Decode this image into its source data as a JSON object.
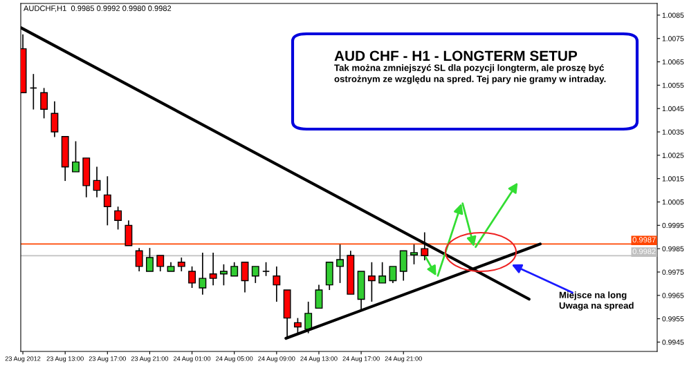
{
  "chart_data": {
    "type": "candlestick",
    "title": "AUD CHF - H1 - LONGTERM SETUP",
    "subtitle": "Tak można zmniejszyć SL dla pozycji longterm, ale proszę być\nostrożnym ze względu na spred. Tej pary nie gramy w intraday.",
    "annotations": [
      "AUDCHF,H1  0.9985 0.9992 0.9980 0.9982",
      "Miejsce na long\nUwaga na spread"
    ],
    "x": [
      "2012-08-23T09:00",
      "2012-08-23T10:00",
      "2012-08-23T11:00",
      "2012-08-23T12:00",
      "2012-08-23T13:00",
      "2012-08-23T14:00",
      "2012-08-23T15:00",
      "2012-08-23T16:00",
      "2012-08-23T17:00",
      "2012-08-23T18:00",
      "2012-08-23T19:00",
      "2012-08-23T20:00",
      "2012-08-23T21:00",
      "2012-08-23T22:00",
      "2012-08-23T23:00",
      "2012-08-24T00:00",
      "2012-08-24T01:00",
      "2012-08-24T02:00",
      "2012-08-24T03:00",
      "2012-08-24T04:00",
      "2012-08-24T05:00",
      "2012-08-24T06:00",
      "2012-08-24T07:00",
      "2012-08-24T08:00",
      "2012-08-24T09:00",
      "2012-08-24T10:00",
      "2012-08-24T11:00",
      "2012-08-24T12:00",
      "2012-08-24T13:00",
      "2012-08-24T14:00",
      "2012-08-24T15:00",
      "2012-08-24T16:00",
      "2012-08-24T17:00",
      "2012-08-24T18:00",
      "2012-08-24T19:00",
      "2012-08-24T20:00",
      "2012-08-24T21:00",
      "2012-08-24T22:00",
      "2012-08-24T23:00"
    ],
    "ohlc": [
      [
        1.00706,
        1.00768,
        1.00518,
        1.00518
      ],
      [
        1.00538,
        1.00598,
        1.00446,
        1.00538
      ],
      [
        1.00518,
        1.00538,
        1.00408,
        1.00447
      ],
      [
        1.00429,
        1.00481,
        1.00328,
        1.0035
      ],
      [
        1.0033,
        1.0033,
        1.0014,
        1.002
      ],
      [
        1.00179,
        1.0031,
        1.00179,
        1.00221
      ],
      [
        1.00238,
        1.00238,
        1.0007,
        1.0012
      ],
      [
        1.00142,
        1.00201,
        1.0007,
        1.001
      ],
      [
        1.0008,
        1.0016,
        0.9995,
        1.0003
      ],
      [
        1.00012,
        1.0003,
        0.99932,
        0.99971
      ],
      [
        0.9995,
        0.99971,
        0.99863,
        0.99863
      ],
      [
        0.99841,
        0.99853,
        0.99753,
        0.99774
      ],
      [
        0.99753,
        0.99853,
        0.99753,
        0.99812
      ],
      [
        0.99821,
        0.99821,
        0.99753,
        0.99774
      ],
      [
        0.99753,
        0.99792,
        0.99753,
        0.99774
      ],
      [
        0.99792,
        0.99812,
        0.99753,
        0.99774
      ],
      [
        0.99753,
        0.99774,
        0.99682,
        0.99703
      ],
      [
        0.99682,
        0.99833,
        0.99653,
        0.99723
      ],
      [
        0.99742,
        0.99833,
        0.99693,
        0.99723
      ],
      [
        0.99742,
        0.99783,
        0.99693,
        0.99753
      ],
      [
        0.99733,
        0.99792,
        0.99733,
        0.99774
      ],
      [
        0.99792,
        0.99792,
        0.99663,
        0.99713
      ],
      [
        0.99733,
        0.99774,
        0.99703,
        0.99774
      ],
      [
        0.99753,
        0.99792,
        0.99733,
        0.99753
      ],
      [
        0.99733,
        0.99774,
        0.99623,
        0.99695
      ],
      [
        0.99673,
        0.99673,
        0.99468,
        0.99553
      ],
      [
        0.99533,
        0.99553,
        0.99488,
        0.99515
      ],
      [
        0.99505,
        0.99623,
        0.99488,
        0.99573
      ],
      [
        0.99595,
        0.99695,
        0.99595,
        0.99673
      ],
      [
        0.99695,
        0.99792,
        0.99673,
        0.99792
      ],
      [
        0.99774,
        0.99868,
        0.99703,
        0.99803
      ],
      [
        0.99821,
        0.99841,
        0.99655,
        0.99655
      ],
      [
        0.99633,
        0.99753,
        0.99583,
        0.99753
      ],
      [
        0.99733,
        0.99792,
        0.99623,
        0.99713
      ],
      [
        0.99703,
        0.99792,
        0.99703,
        0.99733
      ],
      [
        0.99713,
        0.99774,
        0.99703,
        0.99774
      ],
      [
        0.99753,
        0.99841,
        0.99713,
        0.99841
      ],
      [
        0.99823,
        0.99868,
        0.99783,
        0.99833
      ],
      [
        0.9985,
        0.9992,
        0.998,
        0.9982
      ]
    ],
    "colors": [
      "#ff0000",
      "#000000",
      "#ff0000",
      "#ff0000",
      "#ff0000",
      "#32cd32",
      "#ff0000",
      "#ff0000",
      "#ff0000",
      "#ff0000",
      "#ff0000",
      "#ff0000",
      "#32cd32",
      "#ff0000",
      "#32cd32",
      "#ff0000",
      "#ff0000",
      "#32cd32",
      "#ff0000",
      "#32cd32",
      "#32cd32",
      "#ff0000",
      "#32cd32",
      "#000000",
      "#ff0000",
      "#ff0000",
      "#ff0000",
      "#32cd32",
      "#32cd32",
      "#32cd32",
      "#32cd32",
      "#ff0000",
      "#32cd32",
      "#ff0000",
      "#32cd32",
      "#32cd32",
      "#32cd32",
      "#32cd32",
      "#ff0000"
    ],
    "series": [
      {
        "type": "line",
        "color": "#000000",
        "x": [
          "2012-08-23T08:49",
          "2012-08-25T08:53"
        ],
        "values": [
          1.00796,
          0.99634
        ]
      },
      {
        "type": "line",
        "color": "#000000",
        "x": [
          "2012-08-24T09:53",
          "2012-08-25T09:56"
        ],
        "values": [
          0.99466,
          0.9987
        ]
      }
    ],
    "xlim": [
      "2012-08-23T08:48",
      "2012-08-25T21:00"
    ],
    "xticks": [
      {
        "value": "2012-08-23T09:00",
        "label": "23 Aug 2012"
      },
      {
        "value": "2012-08-23T13:00",
        "label": "23 Aug 13:00"
      },
      {
        "value": "2012-08-23T17:00",
        "label": "23 Aug 17:00"
      },
      {
        "value": "2012-08-23T21:00",
        "label": "23 Aug 21:00"
      },
      {
        "value": "2012-08-24T01:00",
        "label": "24 Aug 01:00"
      },
      {
        "value": "2012-08-24T05:00",
        "label": "24 Aug 05:00"
      },
      {
        "value": "2012-08-24T09:00",
        "label": "24 Aug 09:00"
      },
      {
        "value": "2012-08-24T13:00",
        "label": "24 Aug 13:00"
      },
      {
        "value": "2012-08-24T17:00",
        "label": "24 Aug 17:00"
      },
      {
        "value": "2012-08-24T21:00",
        "label": "24 Aug 21:00"
      }
    ],
    "ylim": [
      0.9941,
      1.009
    ],
    "yticks": [
      0.9945,
      0.9955,
      0.9965,
      0.9975,
      0.9985,
      0.9995,
      1.0005,
      1.0015,
      1.0025,
      1.0035,
      1.0045,
      1.0055,
      1.0065,
      1.0075,
      1.0085
    ],
    "ref_lines": [
      {
        "axis": "y",
        "value": 0.9987,
        "label": "0.9987",
        "color": "#ff4500"
      },
      {
        "axis": "y",
        "value": 0.9982,
        "label": "0.9982",
        "color": "#c0c0c0"
      }
    ],
    "grid": false
  }
}
